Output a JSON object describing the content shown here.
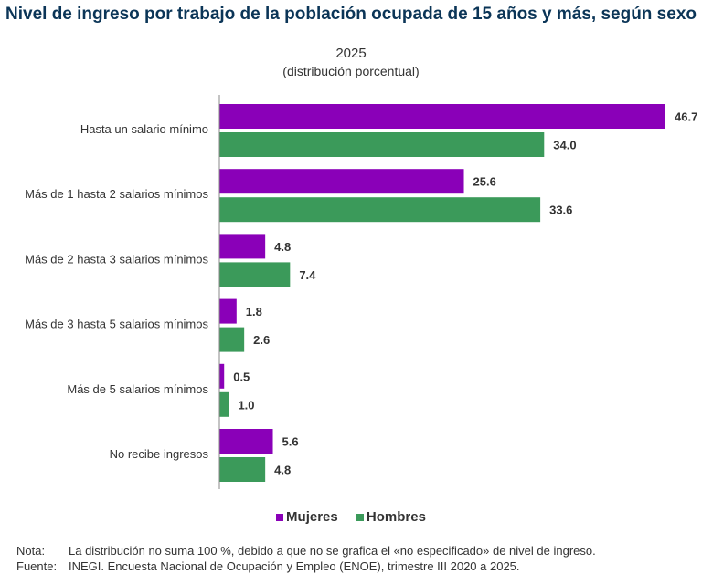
{
  "chart_data": {
    "type": "bar",
    "orientation": "horizontal",
    "title": "Nivel de ingreso por trabajo de la población ocupada de 15 años y más, según sexo",
    "subtitle": "2025",
    "unit_note": "(distribución porcentual)",
    "categories": [
      "Hasta un salario mínimo",
      "Más de 1 hasta 2 salarios mínimos",
      "Más de 2 hasta 3 salarios mínimos",
      "Más de 3 hasta 5 salarios mínimos",
      "Más de 5 salarios mínimos",
      "No recibe ingresos"
    ],
    "series": [
      {
        "name": "Mujeres",
        "color": "#8a00b8",
        "values": [
          46.7,
          25.6,
          4.8,
          1.8,
          0.5,
          5.6
        ]
      },
      {
        "name": "Hombres",
        "color": "#3b9a5a",
        "values": [
          34.0,
          33.6,
          7.4,
          2.6,
          1.0,
          4.8
        ]
      }
    ],
    "xlim": [
      0,
      50
    ],
    "grid": false,
    "legend": "bottom"
  },
  "notes": {
    "nota_label": "Nota:",
    "nota": "La distribución no suma 100 %, debido a que no se grafica el «no especificado» de nivel de ingreso.",
    "fuente_label": "Fuente:",
    "fuente": "INEGI. Encuesta Nacional de Ocupación y Empleo (ENOE), trimestre III 2020 a 2025."
  }
}
